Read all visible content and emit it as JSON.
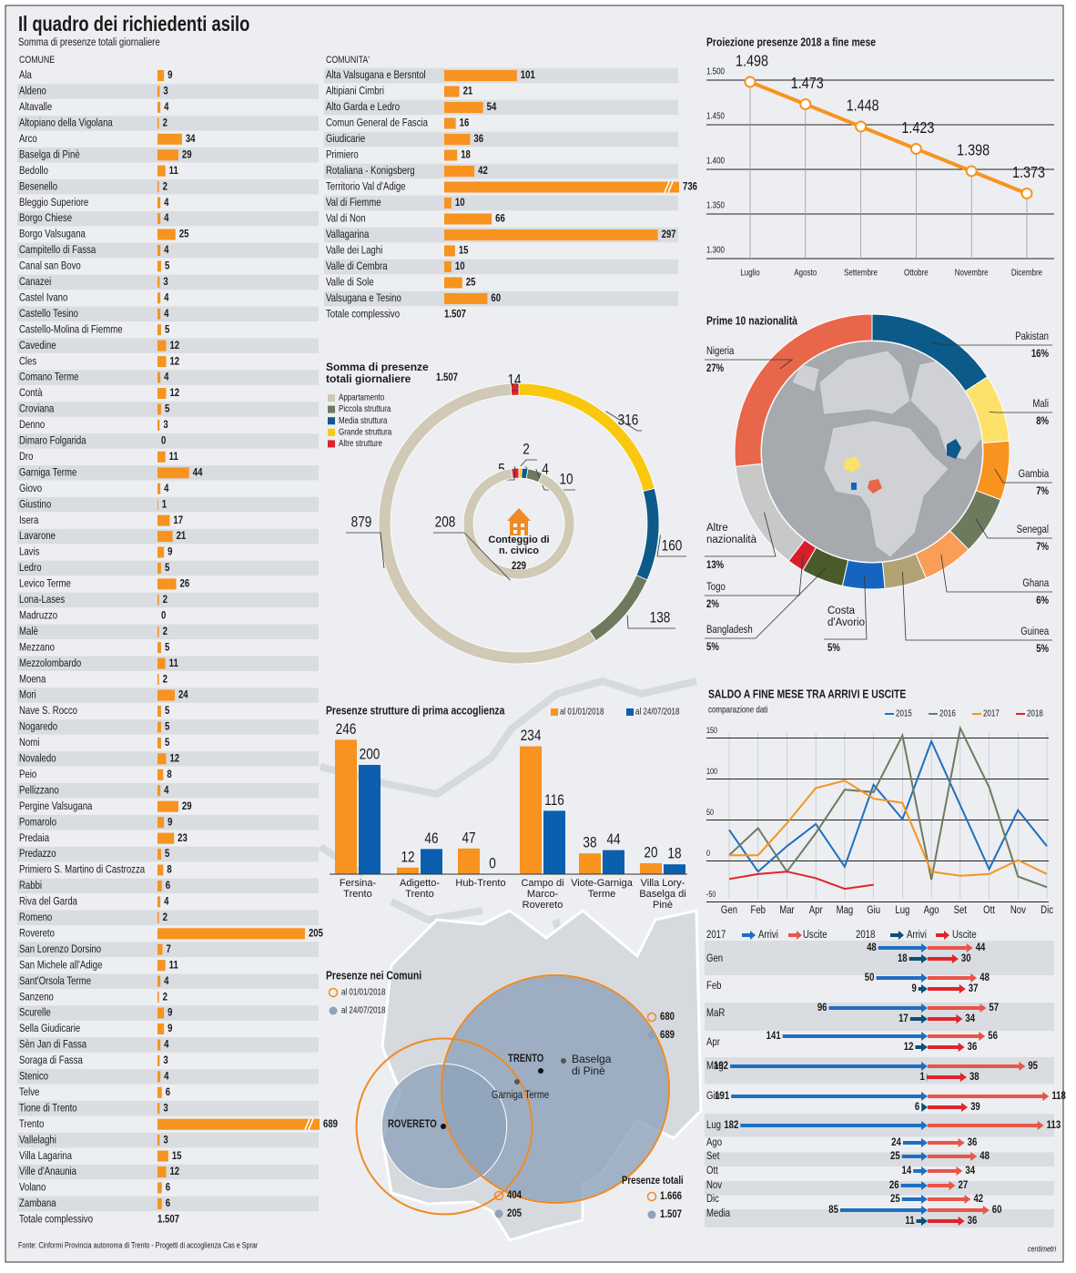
{
  "header": {
    "title": "Il quadro dei richiedenti asilo",
    "subtitle": "Somma di presenze totali giornaliere"
  },
  "footer": {
    "source": "Fonte: Cinformi Provincia autonoma di Trento - Progetti di accoglienza Cas e Sprar",
    "logo": "centimetri"
  },
  "chart_data": [
    {
      "type": "hlist",
      "header": "COMUNE",
      "color": "#f7931e",
      "categories": [
        "Ala",
        "Aldeno",
        "Altavalle",
        "Altopiano della Vigolana",
        "Arco",
        "Baselga di Pinè",
        "Bedollo",
        "Besenello",
        "Bleggio Superiore",
        "Borgo Chiese",
        "Borgo Valsugana",
        "Campitello di Fassa",
        "Canal san Bovo",
        "Canazei",
        "Castel Ivano",
        "Castello Tesino",
        "Castello-Molina di Fiemme",
        "Cavedine",
        "Cles",
        "Comano Terme",
        "Contà",
        "Croviana",
        "Denno",
        "Dimaro Folgarida",
        "Dro",
        "Garniga Terme",
        "Giovo",
        "Giustino",
        "Isera",
        "Lavarone",
        "Lavis",
        "Ledro",
        "Levico Terme",
        "Lona-Lases",
        "Madruzzo",
        "Malè",
        "Mezzano",
        "Mezzolombardo",
        "Moena",
        "Mori",
        "Nave S. Rocco",
        "Nogaredo",
        "Nomi",
        "Novaledo",
        "Peio",
        "Pellizzano",
        "Pergine Valsugana",
        "Pomarolo",
        "Predaia",
        "Predazzo",
        "Primiero S. Martino di Castrozza",
        "Rabbi",
        "Riva del Garda",
        "Romeno",
        "Rovereto",
        "San Lorenzo Dorsino",
        "San Michele all'Adige",
        "Sant'Orsola Terme",
        "Sanzeno",
        "Scurelle",
        "Sella Giudicarie",
        "Sèn Jan di Fassa",
        "Soraga di Fassa",
        "Stenico",
        "Telve",
        "Tione di Trento",
        "Trento",
        "Vallelaghi",
        "Villa Lagarina",
        "Ville d'Anaunia",
        "Volano",
        "Zambana"
      ],
      "values": [
        9,
        3,
        4,
        2,
        34,
        29,
        11,
        2,
        4,
        4,
        25,
        4,
        5,
        3,
        4,
        4,
        5,
        12,
        12,
        4,
        12,
        5,
        3,
        0,
        11,
        44,
        4,
        1,
        17,
        21,
        9,
        5,
        26,
        2,
        0,
        2,
        5,
        11,
        2,
        24,
        5,
        5,
        5,
        12,
        8,
        4,
        29,
        9,
        23,
        5,
        8,
        6,
        4,
        2,
        205,
        7,
        11,
        4,
        2,
        9,
        9,
        4,
        3,
        4,
        6,
        3,
        689,
        3,
        15,
        12,
        6,
        6
      ],
      "total_label": "Totale complessivo",
      "total": "1.507"
    },
    {
      "type": "hlist",
      "header": "COMUNITA'",
      "color": "#f7931e",
      "categories": [
        "Alta Valsugana e Bersntol",
        "Altipiani Cimbri",
        "Alto Garda e Ledro",
        "Comun General de Fascia",
        "Giudicarie",
        "Primiero",
        "Rotaliana - Konigsberg",
        "Territorio Val d'Adige",
        "Val di Fiemme",
        "Val di Non",
        "Vallagarina",
        "Valle dei Laghi",
        "Valle di Cembra",
        "Valle di Sole",
        "Valsugana e Tesino"
      ],
      "values": [
        101,
        21,
        54,
        16,
        36,
        18,
        42,
        736,
        10,
        66,
        297,
        15,
        10,
        25,
        60
      ],
      "total_label": "Totale complessivo",
      "total": "1.507"
    },
    {
      "type": "line",
      "title": "Proiezione presenze 2018 a fine mese",
      "color": "#f7931e",
      "categories": [
        "Luglio",
        "Agosto",
        "Settembre",
        "Ottobre",
        "Novembre",
        "Dicembre"
      ],
      "values": [
        1498,
        1473,
        1448,
        1423,
        1398,
        1373
      ],
      "value_labels": [
        "1.498",
        "1.473",
        "1.448",
        "1.423",
        "1.398",
        "1.373"
      ],
      "ylim": [
        1300,
        1500
      ],
      "yticks": [
        {
          "value": 1500,
          "label": "1.500"
        },
        {
          "value": 1450,
          "label": "1.450"
        },
        {
          "value": 1400,
          "label": "1.400"
        },
        {
          "value": 1350,
          "label": "1.350"
        },
        {
          "value": 1300,
          "label": "1.300"
        }
      ],
      "grid": true
    },
    {
      "type": "donut-double",
      "title": "Somma di presenze totali giornaliere",
      "total": "1.507",
      "categories": [
        "Appartamento",
        "Piccola struttura",
        "Media struttura",
        "Grande struttura",
        "Altre strutture"
      ],
      "colors": [
        "#cfc9b6",
        "#6e7a5e",
        "#0b5a8a",
        "#f9c80e",
        "#e0242b"
      ],
      "values": [
        879,
        138,
        160,
        316,
        14
      ],
      "inner": {
        "title": "Conteggio di n. civico",
        "total": "229",
        "values": [
          208,
          10,
          4,
          2,
          5
        ]
      }
    },
    {
      "type": "donut",
      "title": "Prime 10 nazionalità",
      "categories": [
        "Pakistan",
        "Mali",
        "Gambia",
        "Senegal",
        "Ghana",
        "Guinea",
        "Costa d'Avorio",
        "Bangladesh",
        "Togo",
        "Altre nazionalità",
        "Nigeria"
      ],
      "values": [
        16,
        8,
        7,
        7,
        6,
        5,
        5,
        5,
        2,
        13,
        27
      ],
      "value_labels": [
        "16%",
        "8%",
        "7%",
        "7%",
        "6%",
        "5%",
        "5%",
        "5%",
        "2%",
        "13%",
        "27%"
      ],
      "colors": [
        "#0b5a8a",
        "#fde16a",
        "#f7931e",
        "#6e7a5e",
        "#f99d57",
        "#b3a374",
        "#1565c0",
        "#4a5a2a",
        "#d81e2c",
        "#c8c8c8",
        "#e8664a"
      ]
    },
    {
      "type": "grouped-bar",
      "title": "Presenze strutture di prima accoglienza",
      "categories": [
        "Fersina-Trento",
        "Adigetto-Trento",
        "Hub-Trento",
        "Campo di Marco-Rovereto",
        "Viote-Garniga Terme",
        "Villa Lory-Baselga di Pinè"
      ],
      "series": [
        {
          "name": "al 01/01/2018",
          "color": "#f7931e",
          "values": [
            246,
            12,
            47,
            234,
            38,
            20
          ]
        },
        {
          "name": "al 24/07/2018",
          "color": "#0b5fae",
          "values": [
            200,
            46,
            0,
            116,
            44,
            18
          ]
        }
      ]
    },
    {
      "type": "multi-line",
      "title": "SALDO A FINE MESE TRA ARRIVI E USCITE",
      "subtitle": "comparazione dati",
      "categories": [
        "Gen",
        "Feb",
        "Mar",
        "Apr",
        "Mag",
        "Giu",
        "Lug",
        "Ago",
        "Set",
        "Ott",
        "Nov",
        "Dic"
      ],
      "series": [
        {
          "name": "2015",
          "color": "#1f6fc1",
          "values": [
            38,
            -13,
            18,
            45,
            -7,
            93,
            51,
            146,
            68,
            -10,
            62,
            18
          ]
        },
        {
          "name": "2016",
          "color": "#6e7a5e",
          "values": [
            7,
            40,
            -13,
            34,
            87,
            84,
            153,
            -23,
            162,
            90,
            -19,
            -32
          ]
        },
        {
          "name": "2017",
          "color": "#f7931e",
          "values": [
            7,
            7,
            46,
            89,
            98,
            76,
            71,
            -13,
            -18,
            -16,
            1,
            -16
          ]
        },
        {
          "name": "2018",
          "color": "#e0242b",
          "values": [
            -22,
            -16,
            -13,
            -21,
            -34,
            -29,
            null,
            null,
            null,
            null,
            null,
            null
          ]
        }
      ],
      "ylim": [
        -55,
        165
      ],
      "yticks": [
        150,
        100,
        50,
        0,
        -50
      ],
      "grid": true
    },
    {
      "type": "diverging-bar",
      "categories": [
        "Gen",
        "Feb",
        "MaR",
        "Apr",
        "Mag",
        "Giu",
        "Lug",
        "Ago",
        "Set",
        "Ott",
        "Nov",
        "Dic",
        "Media"
      ],
      "groups": [
        {
          "name": "2017",
          "series": [
            {
              "name": "Arrivi",
              "color": "#1f6fc1",
              "values": [
                48,
                50,
                96,
                141,
                192,
                191,
                182,
                24,
                25,
                14,
                26,
                25,
                85
              ]
            },
            {
              "name": "Uscite",
              "color": "#e8554a",
              "values": [
                44,
                48,
                57,
                56,
                95,
                118,
                113,
                36,
                48,
                34,
                27,
                42,
                60
              ]
            }
          ]
        },
        {
          "name": "2018",
          "series": [
            {
              "name": "Arrivi",
              "color": "#0b4f7a",
              "values": [
                18,
                9,
                17,
                12,
                1,
                6,
                null,
                null,
                null,
                null,
                null,
                null,
                11
              ]
            },
            {
              "name": "Uscite",
              "color": "#e0242b",
              "values": [
                30,
                37,
                34,
                36,
                38,
                39,
                null,
                null,
                null,
                null,
                null,
                null,
                36
              ]
            }
          ]
        }
      ]
    },
    {
      "type": "bubble",
      "title": "Presenze nei Comuni",
      "categories": [
        "TRENTO",
        "ROVERETO"
      ],
      "series": [
        {
          "name": "al 01/01/2018",
          "color": "#f08a24",
          "values": [
            680,
            404
          ]
        },
        {
          "name": "al 24/07/2018",
          "color": "#8fa2bb",
          "values": [
            689,
            205
          ]
        }
      ],
      "places": [
        "Baselga di Pinè",
        "Garniga Terme"
      ],
      "total_title": "Presenze totali",
      "totals": [
        "1.666",
        "1.507"
      ]
    }
  ]
}
